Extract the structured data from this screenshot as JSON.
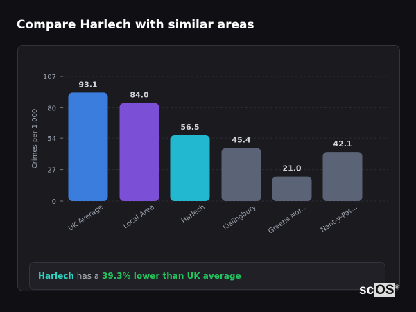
{
  "title": "Compare Harlech with similar areas",
  "chart_data": {
    "type": "bar",
    "ylabel": "Crimes per 1,000",
    "ylim": [
      0,
      107
    ],
    "yticks": [
      0,
      27,
      54,
      80,
      107
    ],
    "grid": true,
    "categories": [
      "UK Average",
      "Local Area",
      "Harlech",
      "Kislingbury",
      "Greens Nor...",
      "Nant-y-Pat..."
    ],
    "values": [
      93.1,
      84.0,
      56.5,
      45.4,
      21.0,
      42.1
    ],
    "value_labels": [
      "93.1",
      "84.0",
      "56.5",
      "45.4",
      "21.0",
      "42.1"
    ],
    "colors": [
      "#3b7ddd",
      "#7b4fd6",
      "#22b8cf",
      "#5b6476",
      "#5b6476",
      "#5b6476"
    ]
  },
  "summary": {
    "place": "Harlech",
    "middle": " has a ",
    "highlight": "39.3% lower than UK average"
  },
  "logo": {
    "a": "sc",
    "b": "OS",
    "mark": "®"
  }
}
